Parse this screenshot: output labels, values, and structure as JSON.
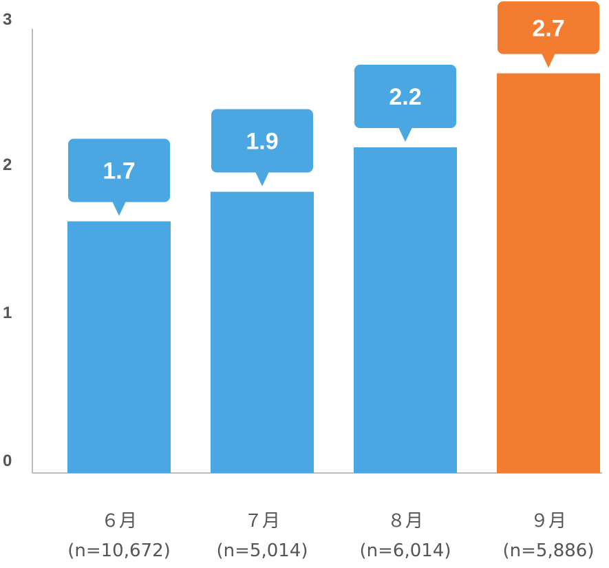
{
  "chart_data": {
    "type": "bar",
    "categories": [
      {
        "month": "６月",
        "n": "(n=10,672)"
      },
      {
        "month": "７月",
        "n": "(n=5,014)"
      },
      {
        "month": "８月",
        "n": "(n=6,014)"
      },
      {
        "month": "９月",
        "n": "(n=5,886)"
      }
    ],
    "values": [
      1.7,
      1.9,
      2.2,
      2.7
    ],
    "value_labels": [
      "1.7",
      "1.9",
      "2.2",
      "2.7"
    ],
    "highlight_index": 3,
    "y_ticks": [
      "0",
      "1",
      "2",
      "3"
    ],
    "ylim": [
      0,
      3
    ],
    "grid": false,
    "colors": {
      "bar": "#4BA7E2",
      "highlight": "#F27D30",
      "axis": "#BBBBBB",
      "text": "#555555"
    }
  }
}
